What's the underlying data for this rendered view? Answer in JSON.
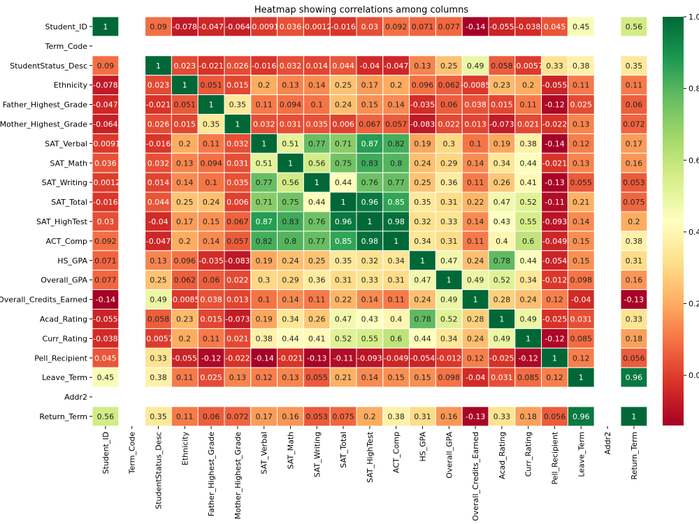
{
  "chart_data": {
    "type": "heatmap",
    "title": "Heatmap showing correlations among columns",
    "labels": [
      "Student_ID",
      "Term_Code",
      "StudentStatus_Desc",
      "Ethnicity",
      "Father_Highest_Grade",
      "Mother_Highest_Grade",
      "SAT_Verbal",
      "SAT_Math",
      "SAT_Writing",
      "SAT_Total",
      "SAT_HighTest",
      "ACT_Comp",
      "HS_GPA",
      "Overall_GPA",
      "Overall_Credits_Earned",
      "Acad_Rating",
      "Curr_Rating",
      "Pell_Recipient",
      "Leave_Term",
      "Addr2",
      "Return_Term"
    ],
    "matrix": [
      [
        1,
        null,
        0.09,
        -0.078,
        -0.047,
        -0.064,
        -0.0091,
        0.036,
        -0.0012,
        -0.016,
        0.03,
        0.092,
        0.071,
        0.077,
        -0.14,
        -0.055,
        -0.038,
        0.045,
        0.45,
        null,
        0.56
      ],
      [
        null,
        null,
        null,
        null,
        null,
        null,
        null,
        null,
        null,
        null,
        null,
        null,
        null,
        null,
        null,
        null,
        null,
        null,
        null,
        null,
        null
      ],
      [
        0.09,
        null,
        1,
        0.023,
        -0.021,
        0.026,
        -0.016,
        0.032,
        0.014,
        0.044,
        -0.04,
        -0.047,
        0.13,
        0.25,
        0.49,
        0.058,
        -0.0057,
        0.33,
        0.38,
        null,
        0.35
      ],
      [
        -0.078,
        null,
        0.023,
        1,
        0.051,
        0.015,
        0.2,
        0.13,
        0.14,
        0.25,
        0.17,
        0.2,
        0.096,
        0.062,
        -0.0085,
        0.23,
        0.2,
        -0.055,
        0.11,
        null,
        0.11
      ],
      [
        -0.047,
        null,
        -0.021,
        0.051,
        1,
        0.35,
        0.11,
        0.094,
        0.1,
        0.24,
        0.15,
        0.14,
        -0.035,
        0.06,
        0.038,
        0.015,
        0.11,
        -0.12,
        0.025,
        null,
        0.06
      ],
      [
        -0.064,
        null,
        0.026,
        0.015,
        0.35,
        1,
        0.032,
        0.031,
        0.035,
        0.006,
        0.067,
        0.057,
        -0.083,
        0.022,
        0.013,
        -0.073,
        0.021,
        -0.022,
        0.13,
        null,
        0.072
      ],
      [
        -0.0091,
        null,
        -0.016,
        0.2,
        0.11,
        0.032,
        1,
        0.51,
        0.77,
        0.71,
        0.87,
        0.82,
        0.19,
        0.3,
        0.1,
        0.19,
        0.38,
        -0.14,
        0.12,
        null,
        0.17
      ],
      [
        0.036,
        null,
        0.032,
        0.13,
        0.094,
        0.031,
        0.51,
        1,
        0.56,
        0.75,
        0.83,
        0.8,
        0.24,
        0.29,
        0.14,
        0.34,
        0.44,
        -0.021,
        0.13,
        null,
        0.16
      ],
      [
        -0.0012,
        null,
        0.014,
        0.14,
        0.1,
        0.035,
        0.77,
        0.56,
        1,
        0.44,
        0.76,
        0.77,
        0.25,
        0.36,
        0.11,
        0.26,
        0.41,
        -0.13,
        0.055,
        null,
        0.053
      ],
      [
        -0.016,
        null,
        0.044,
        0.25,
        0.24,
        0.006,
        0.71,
        0.75,
        0.44,
        1,
        0.96,
        0.85,
        0.35,
        0.31,
        0.22,
        0.47,
        0.52,
        -0.11,
        0.21,
        null,
        0.075
      ],
      [
        0.03,
        null,
        -0.04,
        0.17,
        0.15,
        0.067,
        0.87,
        0.83,
        0.76,
        0.96,
        1,
        0.98,
        0.32,
        0.33,
        0.14,
        0.43,
        0.55,
        -0.093,
        0.14,
        null,
        0.2
      ],
      [
        0.092,
        null,
        -0.047,
        0.2,
        0.14,
        0.057,
        0.82,
        0.8,
        0.77,
        0.85,
        0.98,
        1,
        0.34,
        0.31,
        0.11,
        0.4,
        0.6,
        -0.049,
        0.15,
        null,
        0.38
      ],
      [
        0.071,
        null,
        0.13,
        0.096,
        -0.035,
        -0.083,
        0.19,
        0.24,
        0.25,
        0.35,
        0.32,
        0.34,
        1,
        0.47,
        0.24,
        0.78,
        0.44,
        -0.054,
        0.15,
        null,
        0.31
      ],
      [
        0.077,
        null,
        0.25,
        0.062,
        0.06,
        0.022,
        0.3,
        0.29,
        0.36,
        0.31,
        0.33,
        0.31,
        0.47,
        1,
        0.49,
        0.52,
        0.34,
        -0.012,
        0.098,
        null,
        0.16
      ],
      [
        -0.14,
        null,
        0.49,
        -0.0085,
        0.038,
        0.013,
        0.1,
        0.14,
        0.11,
        0.22,
        0.14,
        0.11,
        0.24,
        0.49,
        1,
        0.28,
        0.24,
        0.12,
        -0.04,
        null,
        -0.13
      ],
      [
        -0.055,
        null,
        0.058,
        0.23,
        0.015,
        -0.073,
        0.19,
        0.34,
        0.26,
        0.47,
        0.43,
        0.4,
        0.78,
        0.52,
        0.28,
        1,
        0.49,
        -0.025,
        0.031,
        null,
        0.33
      ],
      [
        -0.038,
        null,
        -0.0057,
        0.2,
        0.11,
        0.021,
        0.38,
        0.44,
        0.41,
        0.52,
        0.55,
        0.6,
        0.44,
        0.34,
        0.24,
        0.49,
        1,
        -0.12,
        0.085,
        null,
        0.18
      ],
      [
        0.045,
        null,
        0.33,
        -0.055,
        -0.12,
        -0.022,
        -0.14,
        -0.021,
        -0.13,
        -0.11,
        -0.093,
        -0.049,
        -0.054,
        -0.012,
        0.12,
        -0.025,
        -0.12,
        1,
        0.12,
        null,
        0.056
      ],
      [
        0.45,
        null,
        0.38,
        0.11,
        0.025,
        0.13,
        0.12,
        0.13,
        0.055,
        0.21,
        0.14,
        0.15,
        0.15,
        0.098,
        -0.04,
        0.031,
        0.085,
        0.12,
        1,
        null,
        0.96
      ],
      [
        null,
        null,
        null,
        null,
        null,
        null,
        null,
        null,
        null,
        null,
        null,
        null,
        null,
        null,
        null,
        null,
        null,
        null,
        null,
        null,
        null
      ],
      [
        0.56,
        null,
        0.35,
        0.11,
        0.06,
        0.072,
        0.17,
        0.16,
        0.053,
        0.075,
        0.2,
        0.38,
        0.31,
        0.16,
        -0.13,
        0.33,
        0.18,
        0.056,
        0.96,
        null,
        1
      ]
    ],
    "colormap": "RdYlGn",
    "value_range": [
      -0.14,
      1
    ],
    "colorbar_ticks": [
      "1.0",
      "0.8",
      "0.6",
      "0.4",
      "0.2",
      "0.0"
    ],
    "colorbar_tick_values": [
      1.0,
      0.8,
      0.6,
      0.4,
      0.2,
      0.0
    ],
    "annotations": true,
    "grid": false
  }
}
